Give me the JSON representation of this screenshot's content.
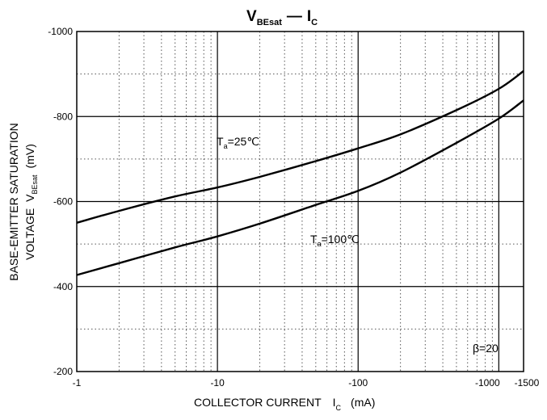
{
  "chart_data": {
    "type": "line",
    "title": {
      "main": "V",
      "main_sub": "BEsat",
      "dash": "—",
      "vs": "I",
      "vs_sub": "C"
    },
    "x_axis": {
      "scale": "log",
      "range": [
        -1,
        -1500
      ],
      "ticks": [
        {
          "value": -1,
          "label": "-1"
        },
        {
          "value": -10,
          "label": "-10"
        },
        {
          "value": -100,
          "label": "-100"
        },
        {
          "value": -1000,
          "label": "-1000"
        },
        {
          "value": -1500,
          "label": "-1500"
        }
      ],
      "label": {
        "text": "COLLECTOR CURRENT",
        "symbol": "I",
        "symbol_sub": "C",
        "unit": "(mA)"
      }
    },
    "y_axis": {
      "scale": "linear",
      "range": [
        -200,
        -1000
      ],
      "ticks": [
        {
          "value": -1000,
          "label": "-1000"
        },
        {
          "value": -800,
          "label": "-800"
        },
        {
          "value": -600,
          "label": "-600"
        },
        {
          "value": -400,
          "label": "-400"
        },
        {
          "value": -200,
          "label": "-200"
        }
      ],
      "label_line1": "BASE-EMITTER SATURATION",
      "label_line2": {
        "text": "VOLTAGE",
        "symbol": "V",
        "symbol_sub": "BEsat",
        "unit": "(mV)"
      }
    },
    "series": [
      {
        "label": {
          "prefix": "T",
          "sub": "a",
          "suffix": "=25℃"
        },
        "x": [
          -1,
          -2,
          -5,
          -10,
          -20,
          -50,
          -100,
          -200,
          -500,
          -1000,
          -1500
        ],
        "y": [
          -550,
          -578,
          -612,
          -633,
          -658,
          -695,
          -725,
          -758,
          -815,
          -865,
          -907
        ]
      },
      {
        "label": {
          "prefix": "T",
          "sub": "a",
          "suffix": "=100℃"
        },
        "x": [
          -1,
          -2,
          -5,
          -10,
          -20,
          -50,
          -100,
          -200,
          -500,
          -1000,
          -1500
        ],
        "y": [
          -427,
          -455,
          -492,
          -518,
          -548,
          -592,
          -625,
          -668,
          -738,
          -795,
          -838
        ]
      }
    ],
    "annotation": "β=20",
    "grid": true
  }
}
